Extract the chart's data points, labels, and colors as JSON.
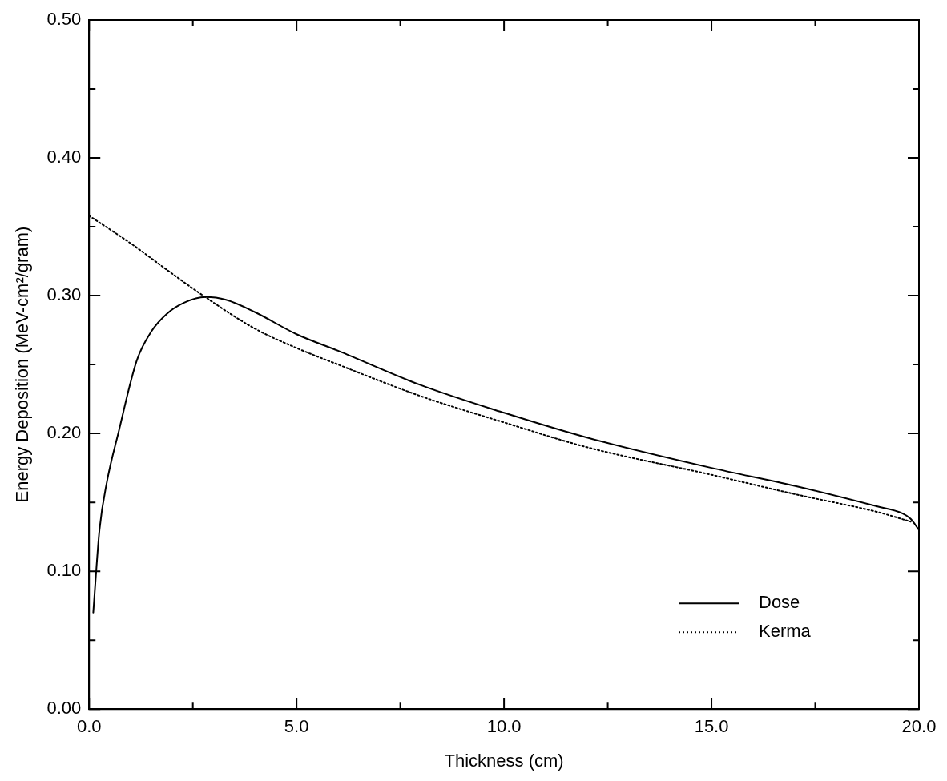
{
  "chart_data": {
    "type": "line",
    "xlabel": "Thickness (cm)",
    "ylabel": "Energy Deposition (MeV-cm²/gram)",
    "xlim": [
      0,
      20
    ],
    "ylim": [
      0,
      0.5
    ],
    "xticks": [
      {
        "value": 0,
        "label": "0.0"
      },
      {
        "value": 2.5,
        "label": null
      },
      {
        "value": 5,
        "label": "5.0"
      },
      {
        "value": 7.5,
        "label": null
      },
      {
        "value": 10,
        "label": "10.0"
      },
      {
        "value": 12.5,
        "label": null
      },
      {
        "value": 15,
        "label": "15.0"
      },
      {
        "value": 17.5,
        "label": null
      },
      {
        "value": 20,
        "label": "20.0"
      }
    ],
    "yticks": [
      {
        "value": 0,
        "label": "0.00"
      },
      {
        "value": 0.05,
        "label": null
      },
      {
        "value": 0.1,
        "label": "0.10"
      },
      {
        "value": 0.15,
        "label": null
      },
      {
        "value": 0.2,
        "label": "0.20"
      },
      {
        "value": 0.25,
        "label": null
      },
      {
        "value": 0.3,
        "label": "0.30"
      },
      {
        "value": 0.35,
        "label": null
      },
      {
        "value": 0.4,
        "label": "0.40"
      },
      {
        "value": 0.45,
        "label": null
      },
      {
        "value": 0.5,
        "label": "0.50"
      }
    ],
    "grid": false,
    "legend": "bottom right",
    "marker": "none",
    "series": [
      {
        "name": "Dose",
        "color": "#000000",
        "line_style": "solid",
        "x": [
          0.1,
          0.25,
          0.43,
          0.71,
          1.15,
          1.5,
          1.88,
          2.3,
          2.8,
          3.3,
          4,
          5,
          6,
          8,
          10,
          12,
          15,
          17,
          19,
          19.6,
          19.8,
          20
        ],
        "values": [
          0.07,
          0.13,
          0.165,
          0.201,
          0.253,
          0.274,
          0.287,
          0.295,
          0.299,
          0.297,
          0.288,
          0.272,
          0.26,
          0.235,
          0.215,
          0.197,
          0.175,
          0.162,
          0.147,
          0.142,
          0.138,
          0.13
        ]
      },
      {
        "name": "Kerma",
        "color": "#000000",
        "line_style": "dotted",
        "x": [
          0,
          1,
          2,
          2.7,
          4,
          5,
          6,
          8,
          10,
          12,
          15,
          17,
          19,
          19.8
        ],
        "values": [
          0.358,
          0.338,
          0.316,
          0.301,
          0.276,
          0.262,
          0.25,
          0.227,
          0.208,
          0.19,
          0.17,
          0.156,
          0.143,
          0.136
        ]
      }
    ]
  }
}
